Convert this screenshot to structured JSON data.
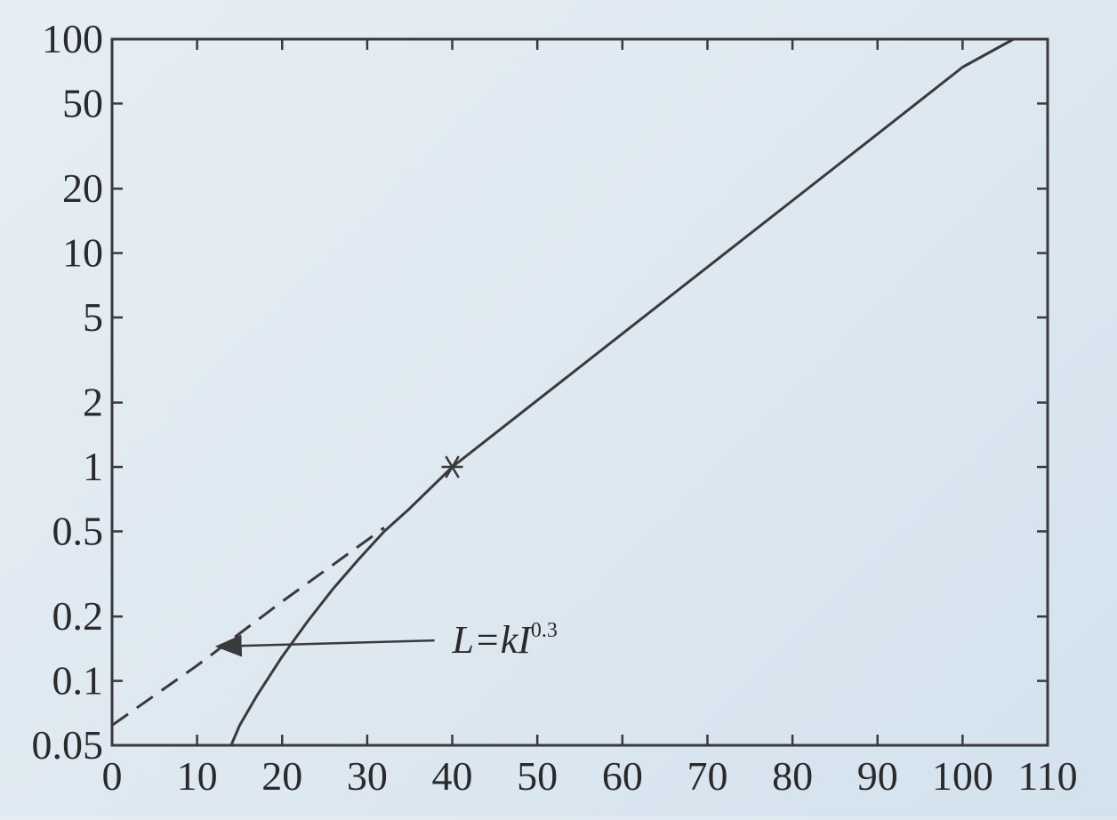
{
  "chart_data": {
    "type": "line",
    "x_scale": "linear",
    "y_scale": "log",
    "xlim": [
      0,
      110
    ],
    "ylim": [
      0.05,
      100
    ],
    "x_ticks": [
      0,
      10,
      20,
      30,
      40,
      50,
      60,
      70,
      80,
      90,
      100,
      110
    ],
    "x_tick_labels": [
      "0",
      "10",
      "20",
      "30",
      "40",
      "50",
      "60",
      "70",
      "80",
      "90",
      "100",
      "110"
    ],
    "y_ticks": [
      0.05,
      0.1,
      0.2,
      0.5,
      1,
      2,
      5,
      10,
      20,
      50,
      100
    ],
    "y_tick_labels": [
      "0.05",
      "0.1",
      "0.2",
      "0.5",
      "1",
      "2",
      "5",
      "10",
      "20",
      "50",
      "100"
    ],
    "grid": false,
    "series": [
      {
        "style": "solid",
        "color": "#3a3a3a",
        "x": [
          14,
          15,
          17,
          20,
          23,
          26,
          29,
          32,
          35,
          40,
          50,
          60,
          70,
          80,
          90,
          100,
          106
        ],
        "y": [
          0.05,
          0.062,
          0.085,
          0.13,
          0.19,
          0.27,
          0.37,
          0.5,
          0.64,
          1.0,
          2.05,
          4.2,
          8.6,
          17.6,
          36,
          74,
          100
        ]
      },
      {
        "style": "dashed",
        "color": "#3a3a3a",
        "x": [
          0,
          10,
          20,
          32
        ],
        "y": [
          0.062,
          0.118,
          0.235,
          0.52
        ]
      }
    ],
    "markers": [
      {
        "symbol": "*",
        "x": 40,
        "y": 1.0
      }
    ],
    "annotations": [
      {
        "text": "L=kI",
        "superscript": "0.3",
        "arrow_target": {
          "x": 12,
          "y": 0.145
        },
        "text_anchor": {
          "x": 40,
          "y": 0.17
        }
      }
    ]
  }
}
